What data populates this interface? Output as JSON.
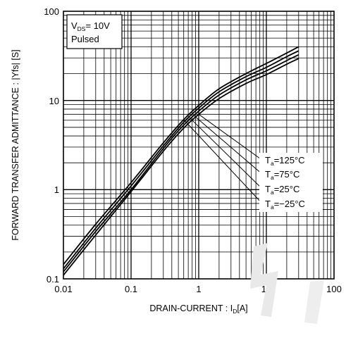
{
  "chart_data": {
    "type": "line",
    "xscale": "log",
    "yscale": "log",
    "xlim": [
      0.01,
      100
    ],
    "ylim": [
      0.1,
      100
    ],
    "grid": true,
    "xticks": [
      "0.01",
      "0.1",
      "1",
      "10",
      "100"
    ],
    "yticks": [
      "0.1",
      "1",
      "10",
      "100"
    ],
    "xlabel": {
      "main": "DRAIN-CURRENT : I",
      "sub": "D",
      "unit": "[A]"
    },
    "ylabel": "FORWARD TRANSFER  ADMITTANCE : |Yfs| [S]",
    "note": {
      "line1_main": "V",
      "line1_sub": "DS",
      "line1_rest": "= 10V",
      "line2": "Pulsed"
    },
    "series": [
      {
        "name_main": "T",
        "name_sub": "a",
        "name_rest": "=125°C",
        "x": [
          0.01,
          0.03,
          0.1,
          0.3,
          0.6,
          1,
          2,
          5,
          10,
          20,
          30
        ],
        "y": [
          0.11,
          0.31,
          0.95,
          2.7,
          4.9,
          7.0,
          10.5,
          15.5,
          19.5,
          25.5,
          29.5
        ]
      },
      {
        "name_main": "T",
        "name_sub": "a",
        "name_rest": "=75°C",
        "x": [
          0.01,
          0.03,
          0.1,
          0.3,
          0.6,
          1,
          2,
          5,
          10,
          20,
          30
        ],
        "y": [
          0.12,
          0.34,
          1.0,
          2.9,
          5.3,
          7.6,
          11.5,
          17.0,
          21.5,
          28.0,
          32.5
        ]
      },
      {
        "name_main": "T",
        "name_sub": "a",
        "name_rest": "=25°C",
        "x": [
          0.01,
          0.03,
          0.1,
          0.3,
          0.6,
          1,
          2,
          5,
          10,
          20,
          30
        ],
        "y": [
          0.13,
          0.37,
          1.1,
          3.1,
          5.7,
          8.2,
          12.5,
          18.5,
          23.5,
          31.0,
          36.0
        ]
      },
      {
        "name_main": "T",
        "name_sub": "a",
        "name_rest": "=−25°C",
        "x": [
          0.01,
          0.03,
          0.1,
          0.3,
          0.6,
          1,
          2,
          5,
          10,
          20,
          30
        ],
        "y": [
          0.145,
          0.41,
          1.2,
          3.35,
          6.1,
          8.8,
          13.5,
          20.0,
          26.0,
          34.0,
          40.0
        ]
      }
    ],
    "legend_placement": "right",
    "colors": {
      "line": "#000000",
      "grid": "#000000",
      "background": "#ffffff"
    }
  }
}
